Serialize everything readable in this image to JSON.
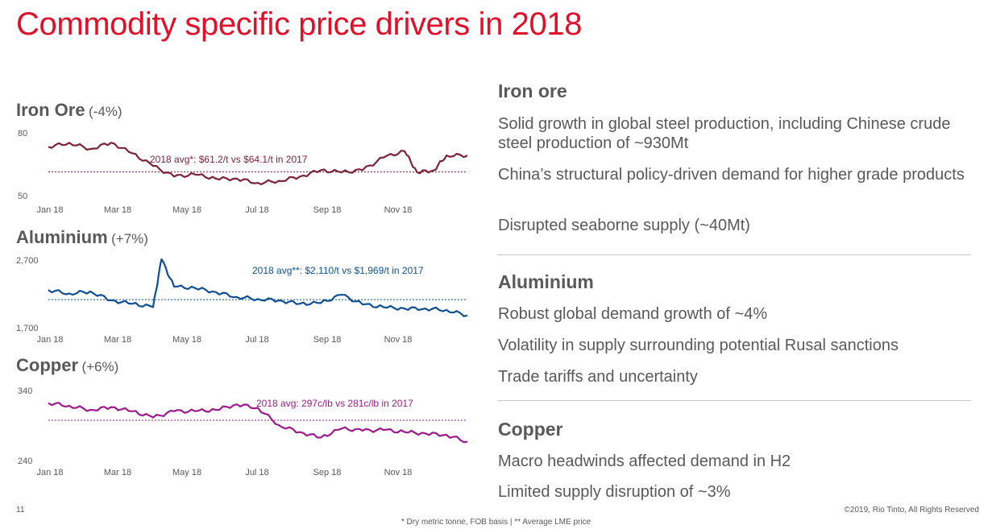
{
  "title": "Commodity specific price drivers in 2018",
  "charts": [
    {
      "name": "Iron Ore",
      "change": "(-4%)",
      "color": "#7b2338",
      "avg_label": "2018 avg*: $61.2/t vs $64.1/t in 2017",
      "y_tick_labels": [
        "80",
        "50"
      ],
      "x_tick_labels": [
        "Jan 18",
        "Mar 18",
        "May 18",
        "Jul 18",
        "Sep 18",
        "Nov 18"
      ]
    },
    {
      "name": "Aluminium",
      "change": "(+7%)",
      "color": "#0f4f8f",
      "avg_label": "2018 avg**: $2,110/t vs $1,969/t in 2017",
      "y_tick_labels": [
        "2,700",
        "1,700"
      ],
      "x_tick_labels": [
        "Jan 18",
        "Mar 18",
        "May 18",
        "Jul 18",
        "Sep 18",
        "Nov 18"
      ]
    },
    {
      "name": "Copper",
      "change": "(+6%)",
      "color": "#9c1a8c",
      "avg_label": "2018 avg: 297c/lb vs 281c/lb in 2017",
      "y_tick_labels": [
        "340",
        "240"
      ],
      "x_tick_labels": [
        "Jan 18",
        "Mar 18",
        "May 18",
        "Jul 18",
        "Sep 18",
        "Nov 18"
      ]
    }
  ],
  "chart_data": [
    {
      "type": "line",
      "ylim": [
        50,
        80
      ],
      "avg": 61.2,
      "x": [
        0,
        0.05,
        0.1,
        0.15,
        0.2,
        0.25,
        0.3,
        0.35,
        0.4,
        0.45,
        0.5,
        0.55,
        0.6,
        0.65,
        0.7,
        0.75,
        0.8,
        0.85,
        0.88,
        0.92,
        0.95,
        1.0
      ],
      "values": [
        73,
        75,
        72,
        75,
        70,
        64,
        59,
        60,
        58,
        58,
        56,
        57,
        59,
        62,
        61,
        62,
        68,
        71,
        61,
        62,
        69,
        69
      ]
    },
    {
      "type": "line",
      "ylim": [
        1700,
        2700
      ],
      "avg": 2110,
      "x": [
        0,
        0.05,
        0.1,
        0.15,
        0.2,
        0.25,
        0.27,
        0.3,
        0.35,
        0.4,
        0.45,
        0.5,
        0.55,
        0.6,
        0.65,
        0.7,
        0.75,
        0.8,
        0.85,
        0.9,
        0.95,
        1.0
      ],
      "values": [
        2250,
        2200,
        2230,
        2100,
        2050,
        2000,
        2700,
        2300,
        2280,
        2220,
        2150,
        2120,
        2100,
        2050,
        2060,
        2180,
        2040,
        2000,
        1980,
        1980,
        1960,
        1880
      ]
    },
    {
      "type": "line",
      "ylim": [
        240,
        340
      ],
      "avg": 297,
      "x": [
        0,
        0.05,
        0.1,
        0.15,
        0.2,
        0.25,
        0.3,
        0.35,
        0.4,
        0.45,
        0.5,
        0.55,
        0.6,
        0.65,
        0.7,
        0.75,
        0.8,
        0.85,
        0.9,
        0.95,
        1.0
      ],
      "values": [
        322,
        318,
        312,
        316,
        310,
        301,
        310,
        310,
        312,
        320,
        315,
        290,
        280,
        272,
        285,
        282,
        283,
        280,
        278,
        276,
        266
      ]
    }
  ],
  "sections": [
    {
      "title": "Iron ore",
      "bullets": [
        "Solid growth in global steel production, including Chinese crude steel production of ~930Mt",
        "China’s structural policy-driven demand for higher grade products",
        "Disrupted seaborne supply (~40Mt)"
      ]
    },
    {
      "title": "Aluminium",
      "bullets": [
        "Robust global demand growth of ~4%",
        "Volatility in supply surrounding potential Rusal sanctions",
        "Trade tariffs and uncertainty"
      ]
    },
    {
      "title": "Copper",
      "bullets": [
        "Macro headwinds affected demand in H2",
        "Limited supply disruption of ~3%"
      ]
    }
  ],
  "footer": {
    "page_number": "11",
    "copyright": "©2019, Rio Tinto, All Rights Reserved",
    "note": "* Dry metric tonne, FOB basis  |  ** Average LME price"
  }
}
